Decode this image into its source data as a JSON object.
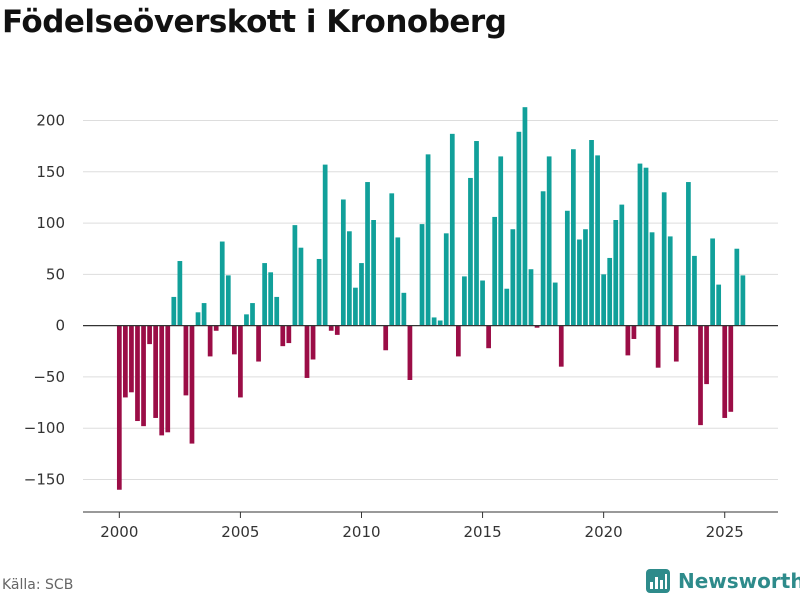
{
  "title": "Födelseöverskott i Kronoberg",
  "source": "Källa: SCB",
  "brand": "Newsworthy",
  "brand_logo_icon": "bar-chart-logo-icon",
  "colors": {
    "positive": "#11a09a",
    "negative": "#9b0d46",
    "grid": "#dddddd",
    "zero": "#333333",
    "brand": "#2e8b8b"
  },
  "chart_data": {
    "type": "bar",
    "title": "Födelseöverskott i Kronoberg",
    "xlabel": "",
    "ylabel": "",
    "ylim": [
      -170,
      220
    ],
    "xlim": [
      1998.5,
      2027.2
    ],
    "yticks": [
      -150,
      -100,
      -50,
      0,
      50,
      100,
      150,
      200
    ],
    "ytick_labels": [
      "−150",
      "−100",
      "−50",
      "0",
      "50",
      "100",
      "150",
      "200"
    ],
    "xticks": [
      2000,
      2005,
      2010,
      2015,
      2020,
      2025
    ],
    "xtick_labels": [
      "2000",
      "2005",
      "2010",
      "2015",
      "2020",
      "2025"
    ],
    "start": 2000.0,
    "step": 0.25,
    "values": [
      -160,
      -70,
      -65,
      -93,
      -98,
      -18,
      -90,
      -107,
      -104,
      28,
      63,
      -68,
      -115,
      13,
      22,
      -30,
      -5,
      82,
      49,
      -28,
      -70,
      11,
      22,
      -35,
      61,
      52,
      28,
      -20,
      -17,
      98,
      76,
      -51,
      -33,
      65,
      157,
      -5,
      -9,
      123,
      92,
      37,
      61,
      140,
      103,
      0,
      -24,
      129,
      86,
      32,
      -53,
      0,
      99,
      167,
      8,
      5,
      90,
      187,
      -30,
      48,
      144,
      180,
      44,
      -22,
      106,
      165,
      36,
      94,
      189,
      213,
      55,
      -2,
      131,
      165,
      42,
      -40,
      112,
      172,
      84,
      94,
      181,
      166,
      50,
      66,
      103,
      118,
      -29,
      -13,
      158,
      154,
      91,
      -41,
      130,
      87,
      -35,
      0,
      140,
      68,
      -97,
      -57,
      85,
      40,
      -90,
      -84,
      75,
      49
    ]
  }
}
